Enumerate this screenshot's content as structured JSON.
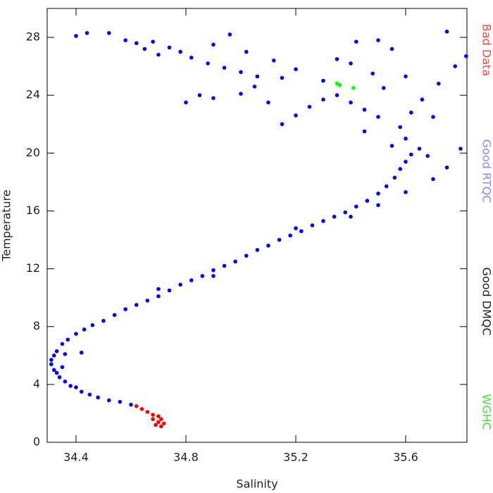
{
  "chart_data": {
    "type": "scatter",
    "x_label": "Salinity",
    "y_label": "Temperature",
    "xlim": [
      34.295,
      35.823
    ],
    "ylim": [
      0,
      30
    ],
    "xticks": [
      {
        "value": 34.4,
        "label": "34.4"
      },
      {
        "value": 34.8,
        "label": "34.8"
      },
      {
        "value": 35.2,
        "label": "35.2"
      },
      {
        "value": 35.6,
        "label": "35.6"
      }
    ],
    "yticks": [
      0,
      4,
      8,
      12,
      16,
      20,
      24,
      28
    ],
    "series": [
      {
        "name": "Bad Data",
        "color": "#ff0000",
        "label_color": "#ff4444",
        "x": [
          34.62,
          34.64,
          34.66,
          34.68,
          34.7,
          34.71,
          34.7,
          34.72,
          34.69,
          34.71,
          34.68
        ],
        "values": [
          2.5,
          2.3,
          2.1,
          1.9,
          1.8,
          1.6,
          1.4,
          1.3,
          1.2,
          1.1,
          1.6
        ]
      },
      {
        "name": "Good RTQC",
        "color": "#0000ff",
        "label_color": "#8888ff",
        "x": [
          34.6,
          34.56,
          34.52,
          34.48,
          34.45,
          34.42,
          34.4,
          34.38,
          34.36,
          34.34,
          34.33,
          34.32,
          34.31,
          34.31,
          34.32,
          34.33,
          34.35,
          34.37,
          34.4,
          34.43,
          34.46,
          34.5,
          34.54,
          34.58,
          34.62,
          34.66,
          34.7,
          34.74,
          34.78,
          34.82,
          34.86,
          34.9,
          34.94,
          34.98,
          35.02,
          35.06,
          35.1,
          35.14,
          35.18,
          35.22,
          35.26,
          35.3,
          35.34,
          35.38,
          35.42,
          35.46,
          35.5,
          35.53,
          35.56,
          35.58,
          35.6,
          35.62,
          34.35,
          34.36,
          34.42,
          34.7,
          34.9,
          35.2,
          35.4,
          35.5,
          35.6,
          35.7,
          35.8,
          35.75,
          35.55,
          35.6,
          35.65,
          35.68,
          35.58,
          35.5,
          35.45,
          35.4,
          35.35,
          35.3,
          35.25,
          35.2,
          35.15,
          35.45,
          35.52,
          35.6,
          35.66,
          35.72,
          35.78,
          35.7,
          35.62,
          35.48,
          35.4,
          35.55,
          35.75,
          35.82,
          35.1,
          35.0,
          34.9,
          34.85,
          34.8,
          35.05,
          35.15,
          34.4,
          34.44,
          34.52,
          34.58,
          34.62,
          34.68,
          34.74,
          34.78,
          34.82,
          34.88,
          34.94,
          35.0,
          35.06,
          34.7,
          34.65,
          34.9,
          34.96,
          35.02,
          35.12,
          35.2,
          35.3,
          35.42,
          35.5,
          35.35
        ],
        "values": [
          2.6,
          2.8,
          2.9,
          3.1,
          3.3,
          3.5,
          3.8,
          3.9,
          4.2,
          4.5,
          4.8,
          5.0,
          5.4,
          5.7,
          6.0,
          6.3,
          6.8,
          7.1,
          7.5,
          7.8,
          8.1,
          8.4,
          8.8,
          9.2,
          9.5,
          9.8,
          10.1,
          10.5,
          10.9,
          11.2,
          11.5,
          11.9,
          12.2,
          12.5,
          12.9,
          13.3,
          13.6,
          14.0,
          14.3,
          14.6,
          15.0,
          15.3,
          15.6,
          15.9,
          16.3,
          16.7,
          17.2,
          17.7,
          18.3,
          18.9,
          19.4,
          19.9,
          5.2,
          6.1,
          6.2,
          10.6,
          11.5,
          14.8,
          15.6,
          16.4,
          17.3,
          18.2,
          20.3,
          19.0,
          20.5,
          21.0,
          20.3,
          19.8,
          21.8,
          22.5,
          23.0,
          23.5,
          24.0,
          23.7,
          23.2,
          22.6,
          22.0,
          21.5,
          24.5,
          25.3,
          23.7,
          24.8,
          26.0,
          22.5,
          22.8,
          25.5,
          26.2,
          27.2,
          28.4,
          26.7,
          23.5,
          24.1,
          23.8,
          24.0,
          23.5,
          24.6,
          25.2,
          28.1,
          28.3,
          28.3,
          27.8,
          27.6,
          27.7,
          27.3,
          27.0,
          26.6,
          26.2,
          25.9,
          25.6,
          25.3,
          26.8,
          27.2,
          27.5,
          28.2,
          27.0,
          26.4,
          25.8,
          25.0,
          27.7,
          27.8,
          26.5
        ]
      },
      {
        "name": "Good DMQC",
        "color": "#000000",
        "label_color": "#222222",
        "x": [],
        "values": []
      },
      {
        "name": "WGHC",
        "color": "#00ff00",
        "label_color": "#44dd44",
        "x": [
          35.35,
          35.36,
          35.41
        ],
        "values": [
          24.8,
          24.7,
          24.5
        ]
      }
    ]
  }
}
